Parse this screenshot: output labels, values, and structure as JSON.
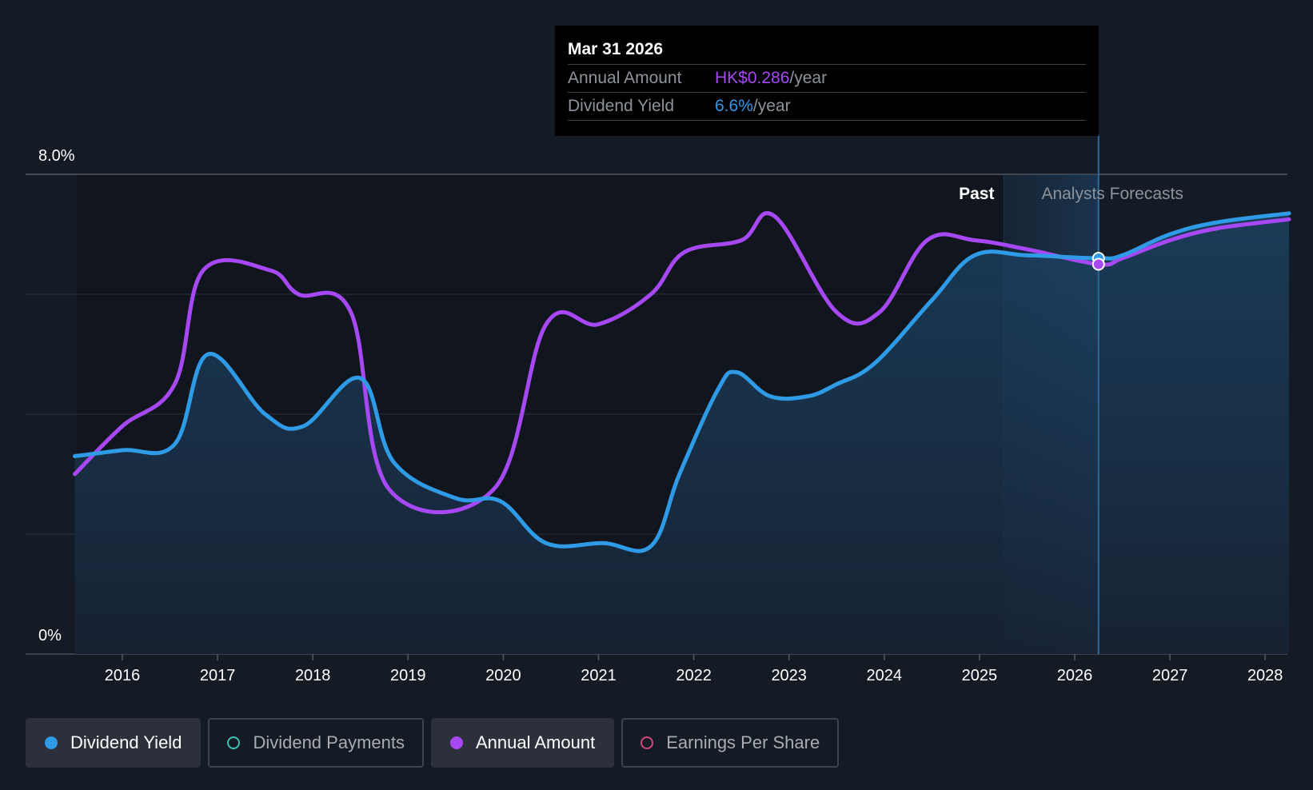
{
  "tooltip": {
    "date": "Mar 31 2026",
    "rows": [
      {
        "label": "Annual Amount",
        "value": "HK$0.286",
        "unit": "/year",
        "color": "#a649f5"
      },
      {
        "label": "Dividend Yield",
        "value": "6.6%",
        "unit": "/year",
        "color": "#2f9be6"
      }
    ]
  },
  "legend": [
    {
      "label": "Dividend Yield",
      "color": "#2f9be6",
      "filled": true,
      "active": true
    },
    {
      "label": "Dividend Payments",
      "color": "#3fc2b4",
      "filled": false,
      "active": false
    },
    {
      "label": "Annual Amount",
      "color": "#a649f5",
      "filled": true,
      "active": true
    },
    {
      "label": "Earnings Per Share",
      "color": "#d4457e",
      "filled": false,
      "active": false
    }
  ],
  "chart_data": {
    "type": "line",
    "y_tick_labels": [
      "8.0%",
      "0%"
    ],
    "ylim": [
      0,
      8
    ],
    "xlim": [
      2015.5,
      2028.25
    ],
    "x_ticks": [
      "2016",
      "2017",
      "2018",
      "2019",
      "2020",
      "2021",
      "2022",
      "2023",
      "2024",
      "2025",
      "2026",
      "2027",
      "2028"
    ],
    "past_label": "Past",
    "forecast_label": "Analysts Forecasts",
    "forecast_start": 2025.5,
    "highlight_start": 2025.25,
    "cursor_x": 2026.25,
    "grid": true,
    "series": [
      {
        "name": "Dividend Yield",
        "unit": "%",
        "color": "#2f9be6",
        "area": true,
        "points": [
          [
            2015.5,
            3.3
          ],
          [
            2016.0,
            3.4
          ],
          [
            2016.55,
            3.5
          ],
          [
            2016.9,
            5.0
          ],
          [
            2017.5,
            4.0
          ],
          [
            2017.9,
            3.8
          ],
          [
            2018.5,
            4.6
          ],
          [
            2018.85,
            3.2
          ],
          [
            2019.5,
            2.6
          ],
          [
            2019.97,
            2.55
          ],
          [
            2020.45,
            1.85
          ],
          [
            2021.05,
            1.85
          ],
          [
            2021.55,
            1.8
          ],
          [
            2021.85,
            3.0
          ],
          [
            2022.25,
            4.4
          ],
          [
            2022.45,
            4.7
          ],
          [
            2022.8,
            4.3
          ],
          [
            2023.2,
            4.3
          ],
          [
            2023.5,
            4.5
          ],
          [
            2023.9,
            4.85
          ],
          [
            2024.5,
            5.9
          ],
          [
            2024.95,
            6.65
          ],
          [
            2025.5,
            6.65
          ],
          [
            2026.25,
            6.6
          ],
          [
            2026.5,
            6.65
          ],
          [
            2027.0,
            7.0
          ],
          [
            2027.5,
            7.2
          ],
          [
            2028.25,
            7.35
          ]
        ]
      },
      {
        "name": "Annual Amount",
        "color": "#a649f5",
        "area": false,
        "points": [
          [
            2015.5,
            3.0
          ],
          [
            2016.0,
            3.8
          ],
          [
            2016.55,
            4.5
          ],
          [
            2016.85,
            6.4
          ],
          [
            2017.55,
            6.4
          ],
          [
            2017.85,
            6.0
          ],
          [
            2018.4,
            5.7
          ],
          [
            2018.8,
            2.75
          ],
          [
            2019.9,
            2.75
          ],
          [
            2020.45,
            5.5
          ],
          [
            2021.0,
            5.5
          ],
          [
            2021.55,
            6.0
          ],
          [
            2021.9,
            6.7
          ],
          [
            2022.5,
            6.9
          ],
          [
            2022.85,
            7.3
          ],
          [
            2023.5,
            5.7
          ],
          [
            2023.95,
            5.7
          ],
          [
            2024.45,
            6.9
          ],
          [
            2024.95,
            6.9
          ],
          [
            2025.5,
            6.75
          ],
          [
            2026.25,
            6.5
          ],
          [
            2026.5,
            6.6
          ],
          [
            2027.0,
            6.9
          ],
          [
            2027.5,
            7.1
          ],
          [
            2028.25,
            7.25
          ]
        ]
      }
    ]
  }
}
